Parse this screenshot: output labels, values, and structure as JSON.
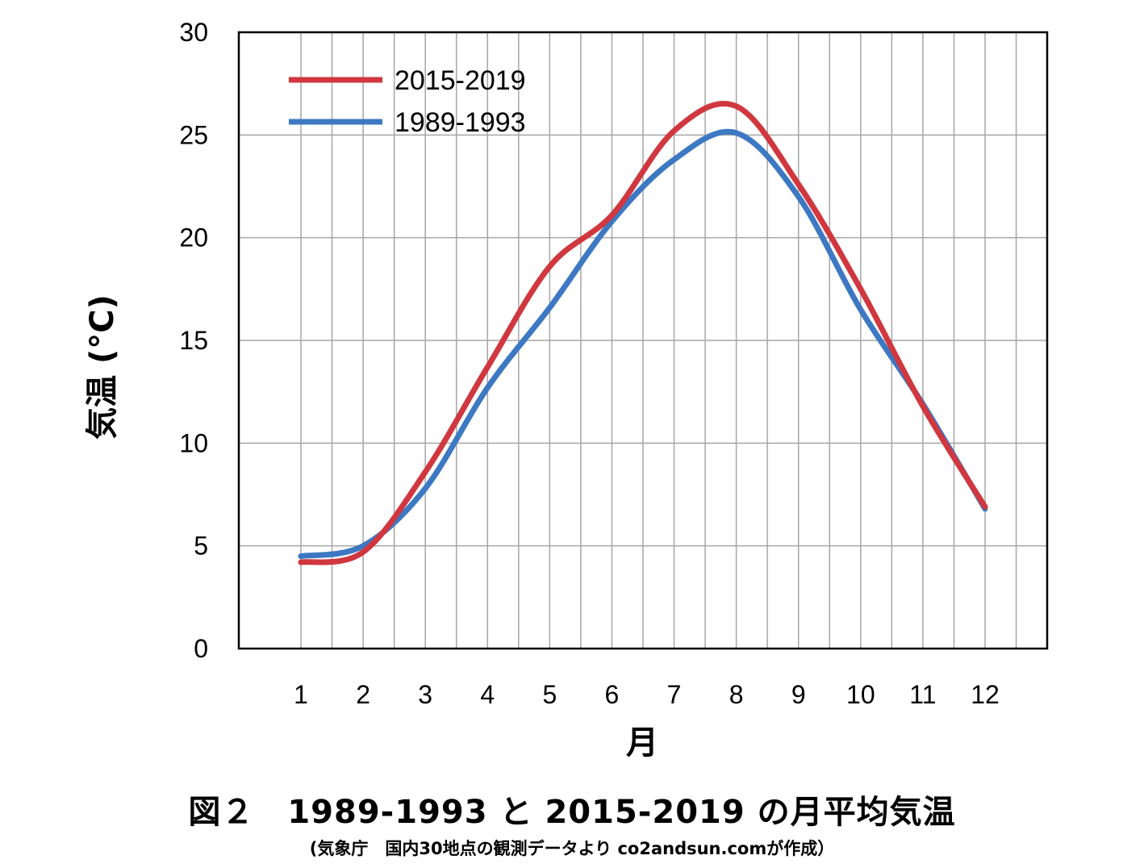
{
  "chart_data": {
    "type": "line",
    "title": "図２　1989-1993 と 2015-2019 の月平均気温",
    "subtitle": "(気象庁　国内30地点の観測データより co2andsun.comが作成）",
    "xlabel": "月",
    "ylabel": "気温 (°C)",
    "categories": [
      "1",
      "2",
      "3",
      "4",
      "5",
      "6",
      "7",
      "8",
      "9",
      "10",
      "11",
      "12"
    ],
    "ylim": [
      0,
      30
    ],
    "yticks": [
      "0",
      "5",
      "10",
      "15",
      "20",
      "25",
      "30"
    ],
    "grid": true,
    "smooth": true,
    "legend_position": "top-left",
    "series": [
      {
        "name": "2015-2019",
        "color": "#d0373f",
        "values": [
          4.2,
          4.7,
          8.6,
          13.7,
          18.6,
          21.1,
          25.2,
          26.4,
          22.6,
          17.5,
          11.8,
          6.9
        ]
      },
      {
        "name": "1989-1993",
        "color": "#3d78c3",
        "values": [
          4.5,
          5.0,
          7.8,
          12.7,
          16.6,
          20.8,
          23.8,
          25.1,
          22.0,
          16.5,
          11.9,
          6.8
        ]
      }
    ]
  }
}
